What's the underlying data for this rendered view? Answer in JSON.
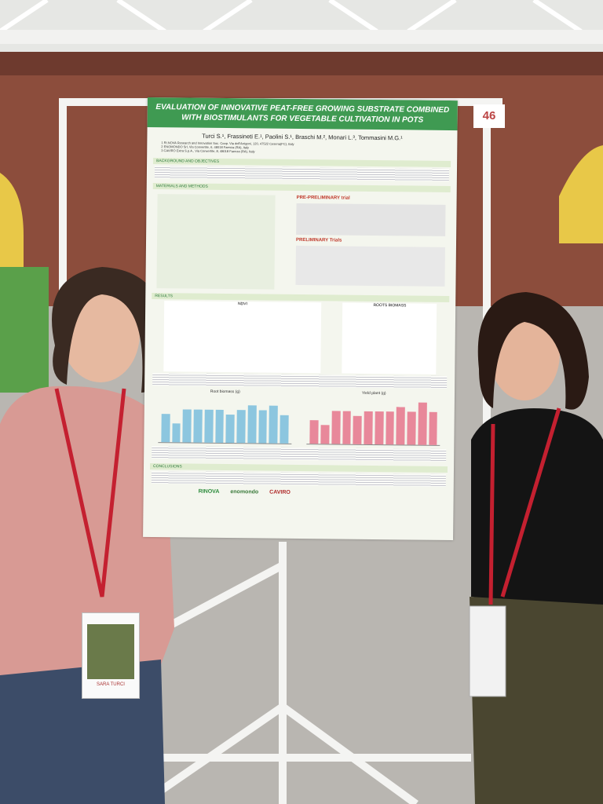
{
  "poster": {
    "number": "46",
    "title": "EVALUATION OF INNOVATIVE PEAT-FREE GROWING SUBSTRATE COMBINED WITH BIOSTIMULANTS FOR VEGETABLE CULTIVATION IN POTS",
    "authors": "Turci S.¹, Frassineti E.¹, Paolini S.¹, Braschi M.², Monari L.³, Tommasini M.G.¹",
    "affiliations": [
      "1 RI.NOVA Research and Innovation Soc. Coop. Via dell'Arrigoni, 120, 47522 Cesena(FC), Italy",
      "2 ENOMONDO Srl, Via Convertite, 6, 48018 Faenza (RA), Italy",
      "3 CAVIRO Extra S.p.A., Via Convertite, 8, 48018 Faenza (RA), Italy"
    ],
    "sections": [
      "Background and objectives",
      "Materials and methods",
      "Results",
      "Conclusions"
    ],
    "labels": [
      "PRE-PRELIMINARY trial",
      "PRELIMINARY Trials",
      "NDVI",
      "ROOTS BIOMASS"
    ],
    "charts": [
      {
        "title": "Root biomass (g)",
        "color": "#8cc6df",
        "values": [
          6,
          4,
          7,
          7,
          7,
          7,
          6,
          7,
          8,
          7,
          8,
          6
        ]
      },
      {
        "title": "Yield plant (g)",
        "color": "#e8889a",
        "values": [
          5,
          4,
          7,
          7,
          6,
          7,
          7,
          7,
          8,
          7,
          9,
          7
        ]
      }
    ],
    "logos": [
      "RINOVA",
      "enomondo",
      "CAVIRO"
    ]
  },
  "badge": "SARA TURCI"
}
